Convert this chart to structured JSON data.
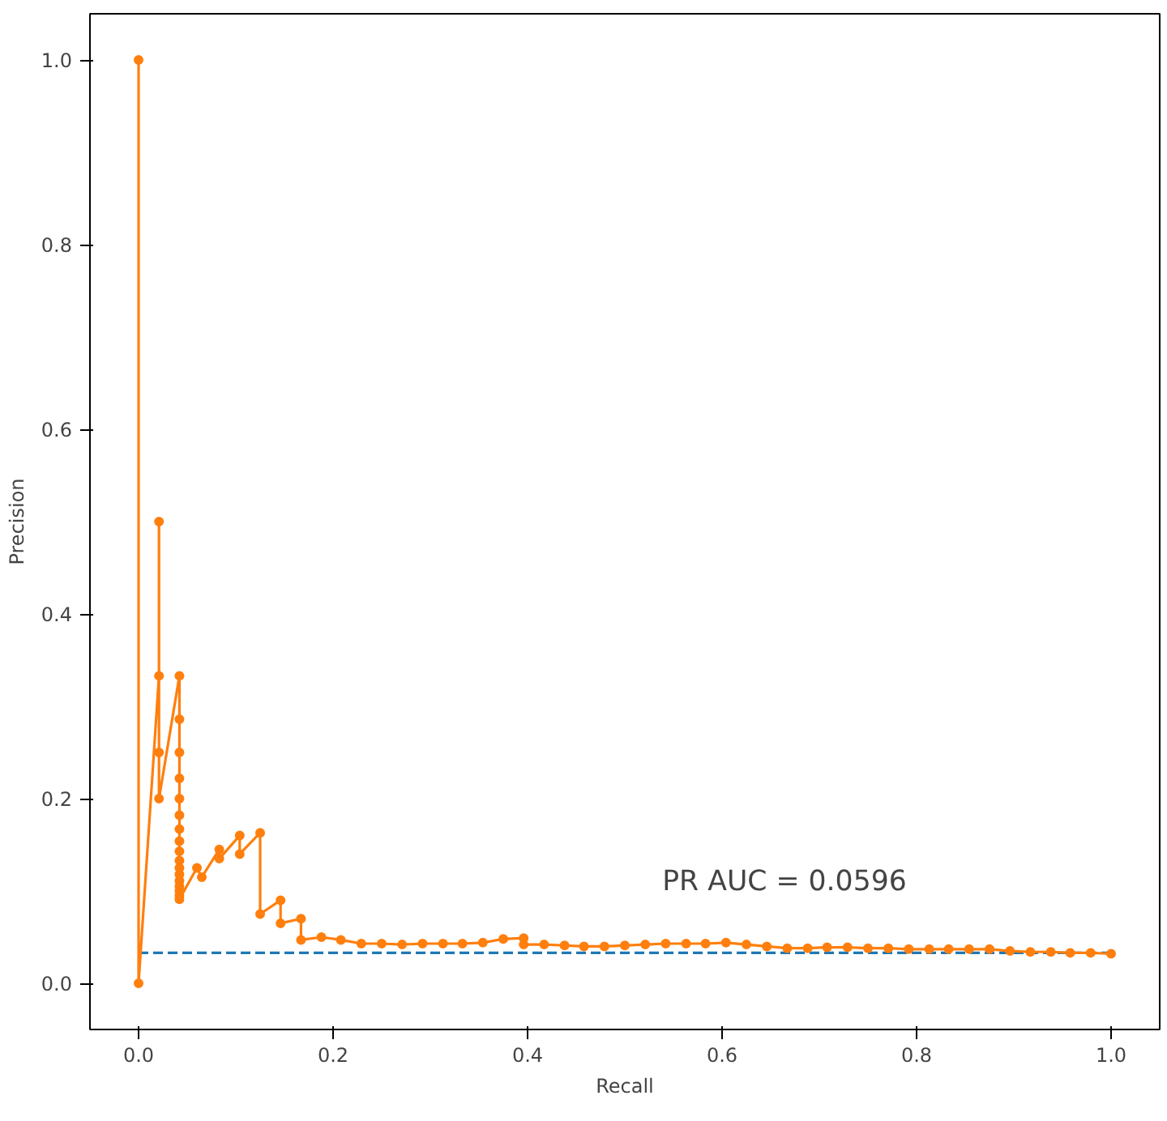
{
  "chart_data": {
    "type": "line",
    "xlabel": "Recall",
    "ylabel": "Precision",
    "xlim": [
      -0.05,
      1.05
    ],
    "ylim": [
      -0.05,
      1.05
    ],
    "xticks": [
      {
        "value": 0,
        "label": "0.0"
      },
      {
        "value": 0.2,
        "label": "0.2"
      },
      {
        "value": 0.4,
        "label": "0.4"
      },
      {
        "value": 0.6,
        "label": "0.6"
      },
      {
        "value": 0.8,
        "label": "0.8"
      },
      {
        "value": 1,
        "label": "1.0"
      }
    ],
    "yticks": [
      {
        "value": 0,
        "label": "0.0"
      },
      {
        "value": 0.2,
        "label": "0.2"
      },
      {
        "value": 0.4,
        "label": "0.4"
      },
      {
        "value": 0.6,
        "label": "0.6"
      },
      {
        "value": 0.8,
        "label": "0.8"
      },
      {
        "value": 1,
        "label": "1.0"
      }
    ],
    "grid": false,
    "annotations": [
      "PR AUC = 0.0596"
    ],
    "series": [
      {
        "color": "#1f77b4",
        "line_style": "dashed",
        "marker": "none",
        "x": [
          0,
          1
        ],
        "values": [
          0.033,
          0.033
        ]
      },
      {
        "color": "#ff7f0e",
        "line_style": "solid",
        "marker": "circle",
        "x": [
          0,
          0,
          0.021,
          0.021,
          0.021,
          0.021,
          0.042,
          0.042,
          0.042,
          0.042,
          0.042,
          0.042,
          0.042,
          0.042,
          0.042,
          0.042,
          0.042,
          0.042,
          0.042,
          0.042,
          0.042,
          0.042,
          0.042,
          0.06,
          0.065,
          0.083,
          0.083,
          0.104,
          0.104,
          0.125,
          0.125,
          0.146,
          0.146,
          0.167,
          0.167,
          0.188,
          0.208,
          0.229,
          0.25,
          0.271,
          0.292,
          0.313,
          0.333,
          0.354,
          0.375,
          0.396,
          0.396,
          0.417,
          0.438,
          0.458,
          0.479,
          0.5,
          0.521,
          0.542,
          0.563,
          0.583,
          0.604,
          0.625,
          0.646,
          0.667,
          0.688,
          0.708,
          0.729,
          0.75,
          0.771,
          0.792,
          0.813,
          0.833,
          0.854,
          0.875,
          0.896,
          0.917,
          0.938,
          0.958,
          0.979,
          1.0
        ],
        "values": [
          1.0,
          0,
          0.333,
          0.5,
          0.25,
          0.2,
          0.333,
          0.286,
          0.25,
          0.222,
          0.2,
          0.182,
          0.167,
          0.154,
          0.143,
          0.133,
          0.125,
          0.118,
          0.111,
          0.105,
          0.1,
          0.095,
          0.091,
          0.125,
          0.115,
          0.145,
          0.135,
          0.16,
          0.14,
          0.163,
          0.075,
          0.09,
          0.065,
          0.07,
          0.047,
          0.05,
          0.047,
          0.043,
          0.043,
          0.042,
          0.043,
          0.043,
          0.043,
          0.044,
          0.048,
          0.049,
          0.042,
          0.042,
          0.041,
          0.04,
          0.04,
          0.041,
          0.042,
          0.043,
          0.043,
          0.043,
          0.044,
          0.042,
          0.04,
          0.038,
          0.038,
          0.039,
          0.039,
          0.038,
          0.038,
          0.037,
          0.037,
          0.037,
          0.037,
          0.037,
          0.035,
          0.034,
          0.034,
          0.033,
          0.033,
          0.032
        ]
      }
    ]
  }
}
